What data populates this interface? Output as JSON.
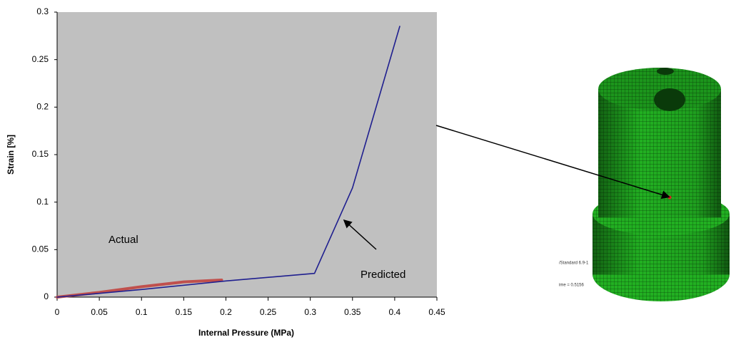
{
  "chart_data": {
    "type": "line",
    "x_label": "Internal Pressure (MPa)",
    "y_label": "Strain [%]",
    "xlim": [
      0,
      0.45
    ],
    "xticks": [
      0,
      0.05,
      0.1,
      0.15,
      0.2,
      0.25,
      0.3,
      0.35,
      0.4,
      0.45
    ],
    "ylim": [
      0,
      0.3
    ],
    "yticks": [
      0,
      0.05,
      0.1,
      0.15,
      0.2,
      0.25,
      0.3
    ],
    "grid": false,
    "background": "#c0c0c0",
    "series": [
      {
        "name": "Actual",
        "color": "#c0504d",
        "x": [
          0,
          0.05,
          0.1,
          0.15,
          0.195
        ],
        "values": [
          0,
          0.005,
          0.011,
          0.016,
          0.018
        ]
      },
      {
        "name": "Predicted",
        "color": "#1f1f8f",
        "x": [
          0,
          0.1,
          0.2,
          0.305,
          0.35,
          0.406
        ],
        "values": [
          0,
          0.008,
          0.017,
          0.025,
          0.115,
          0.285
        ]
      }
    ]
  },
  "image_texts": [
    "/Standard 6.9-1",
    "ime =  0.5156"
  ]
}
